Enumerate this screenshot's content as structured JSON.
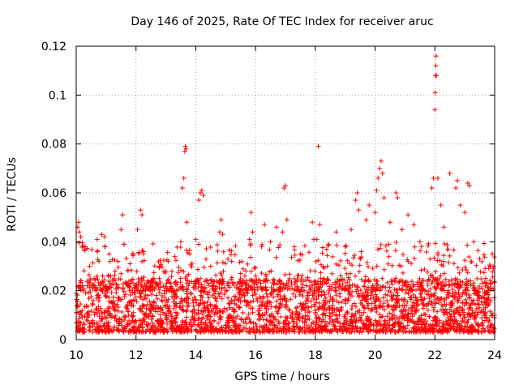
{
  "chart_data": {
    "type": "scatter",
    "title": "Day 146 of 2025, Rate Of TEC Index for receiver aruc",
    "xlabel": "GPS time / hours",
    "ylabel": "ROTI / TECUs",
    "xlim": [
      10,
      24
    ],
    "ylim": [
      0,
      0.12
    ],
    "x_ticks": [
      10,
      12,
      14,
      16,
      18,
      20,
      22,
      24
    ],
    "x_tick_labels": [
      "10",
      "12",
      "14",
      "16",
      "18",
      "20",
      "22",
      "24"
    ],
    "y_ticks": [
      0,
      0.02,
      0.04,
      0.06,
      0.08,
      0.1,
      0.12
    ],
    "y_tick_labels": [
      "0",
      "0.02",
      "0.04",
      "0.06",
      "0.08",
      "0.1",
      "0.12"
    ],
    "grid": true,
    "marker": "+",
    "color": "#ff0000",
    "series": [
      {
        "name": "ROTI",
        "points": [
          [
            10.0,
            0.011
          ],
          [
            10.05,
            0.046
          ],
          [
            10.08,
            0.048
          ],
          [
            10.1,
            0.044
          ],
          [
            10.15,
            0.042
          ],
          [
            10.2,
            0.009
          ],
          [
            10.3,
            0.038
          ],
          [
            10.45,
            0.03
          ],
          [
            10.55,
            0.022
          ],
          [
            10.7,
            0.041
          ],
          [
            10.85,
            0.043
          ],
          [
            10.95,
            0.042
          ],
          [
            11.1,
            0.035
          ],
          [
            11.3,
            0.028
          ],
          [
            11.5,
            0.045
          ],
          [
            11.55,
            0.051
          ],
          [
            11.6,
            0.039
          ],
          [
            11.8,
            0.031
          ],
          [
            12.05,
            0.045
          ],
          [
            12.15,
            0.053
          ],
          [
            12.2,
            0.051
          ],
          [
            12.25,
            0.035
          ],
          [
            12.5,
            0.022
          ],
          [
            12.8,
            0.03
          ],
          [
            13.0,
            0.028
          ],
          [
            13.3,
            0.034
          ],
          [
            13.5,
            0.04
          ],
          [
            13.55,
            0.062
          ],
          [
            13.6,
            0.066
          ],
          [
            13.63,
            0.077
          ],
          [
            13.65,
            0.079
          ],
          [
            13.67,
            0.078
          ],
          [
            13.7,
            0.048
          ],
          [
            13.8,
            0.035
          ],
          [
            14.0,
            0.041
          ],
          [
            14.1,
            0.057
          ],
          [
            14.15,
            0.06
          ],
          [
            14.2,
            0.061
          ],
          [
            14.25,
            0.059
          ],
          [
            14.5,
            0.03
          ],
          [
            14.8,
            0.044
          ],
          [
            14.85,
            0.049
          ],
          [
            14.9,
            0.043
          ],
          [
            15.2,
            0.032
          ],
          [
            15.5,
            0.027
          ],
          [
            15.8,
            0.041
          ],
          [
            15.85,
            0.052
          ],
          [
            15.9,
            0.044
          ],
          [
            16.2,
            0.038
          ],
          [
            16.3,
            0.047
          ],
          [
            16.5,
            0.04
          ],
          [
            16.7,
            0.046
          ],
          [
            16.9,
            0.044
          ],
          [
            16.95,
            0.062
          ],
          [
            17.0,
            0.063
          ],
          [
            17.05,
            0.049
          ],
          [
            17.3,
            0.038
          ],
          [
            17.5,
            0.035
          ],
          [
            17.9,
            0.048
          ],
          [
            17.95,
            0.041
          ],
          [
            18.05,
            0.041
          ],
          [
            18.1,
            0.079
          ],
          [
            18.15,
            0.047
          ],
          [
            18.4,
            0.03
          ],
          [
            18.7,
            0.044
          ],
          [
            19.0,
            0.038
          ],
          [
            19.2,
            0.045
          ],
          [
            19.35,
            0.057
          ],
          [
            19.4,
            0.06
          ],
          [
            19.45,
            0.053
          ],
          [
            19.7,
            0.049
          ],
          [
            19.8,
            0.055
          ],
          [
            20.0,
            0.052
          ],
          [
            20.05,
            0.061
          ],
          [
            20.1,
            0.066
          ],
          [
            20.15,
            0.07
          ],
          [
            20.2,
            0.073
          ],
          [
            20.25,
            0.068
          ],
          [
            20.3,
            0.058
          ],
          [
            20.5,
            0.048
          ],
          [
            20.7,
            0.06
          ],
          [
            20.75,
            0.058
          ],
          [
            20.9,
            0.045
          ],
          [
            21.1,
            0.051
          ],
          [
            21.3,
            0.047
          ],
          [
            21.5,
            0.04
          ],
          [
            21.9,
            0.062
          ],
          [
            21.95,
            0.066
          ],
          [
            22.0,
            0.094
          ],
          [
            22.01,
            0.101
          ],
          [
            22.02,
            0.108
          ],
          [
            22.03,
            0.112
          ],
          [
            22.04,
            0.116
          ],
          [
            22.05,
            0.108
          ],
          [
            22.1,
            0.066
          ],
          [
            22.2,
            0.055
          ],
          [
            22.3,
            0.046
          ],
          [
            22.5,
            0.068
          ],
          [
            22.7,
            0.062
          ],
          [
            22.75,
            0.065
          ],
          [
            22.85,
            0.055
          ],
          [
            23.0,
            0.052
          ],
          [
            23.1,
            0.064
          ],
          [
            23.15,
            0.063
          ],
          [
            23.3,
            0.04
          ],
          [
            23.5,
            0.033
          ],
          [
            23.7,
            0.025
          ],
          [
            23.85,
            0.03
          ],
          [
            23.95,
            0.03
          ],
          [
            24.0,
            0.01
          ]
        ]
      }
    ],
    "dense_band": {
      "description": "bulk of points",
      "x_range": [
        10,
        24
      ],
      "y_range": [
        0.003,
        0.025
      ]
    }
  }
}
